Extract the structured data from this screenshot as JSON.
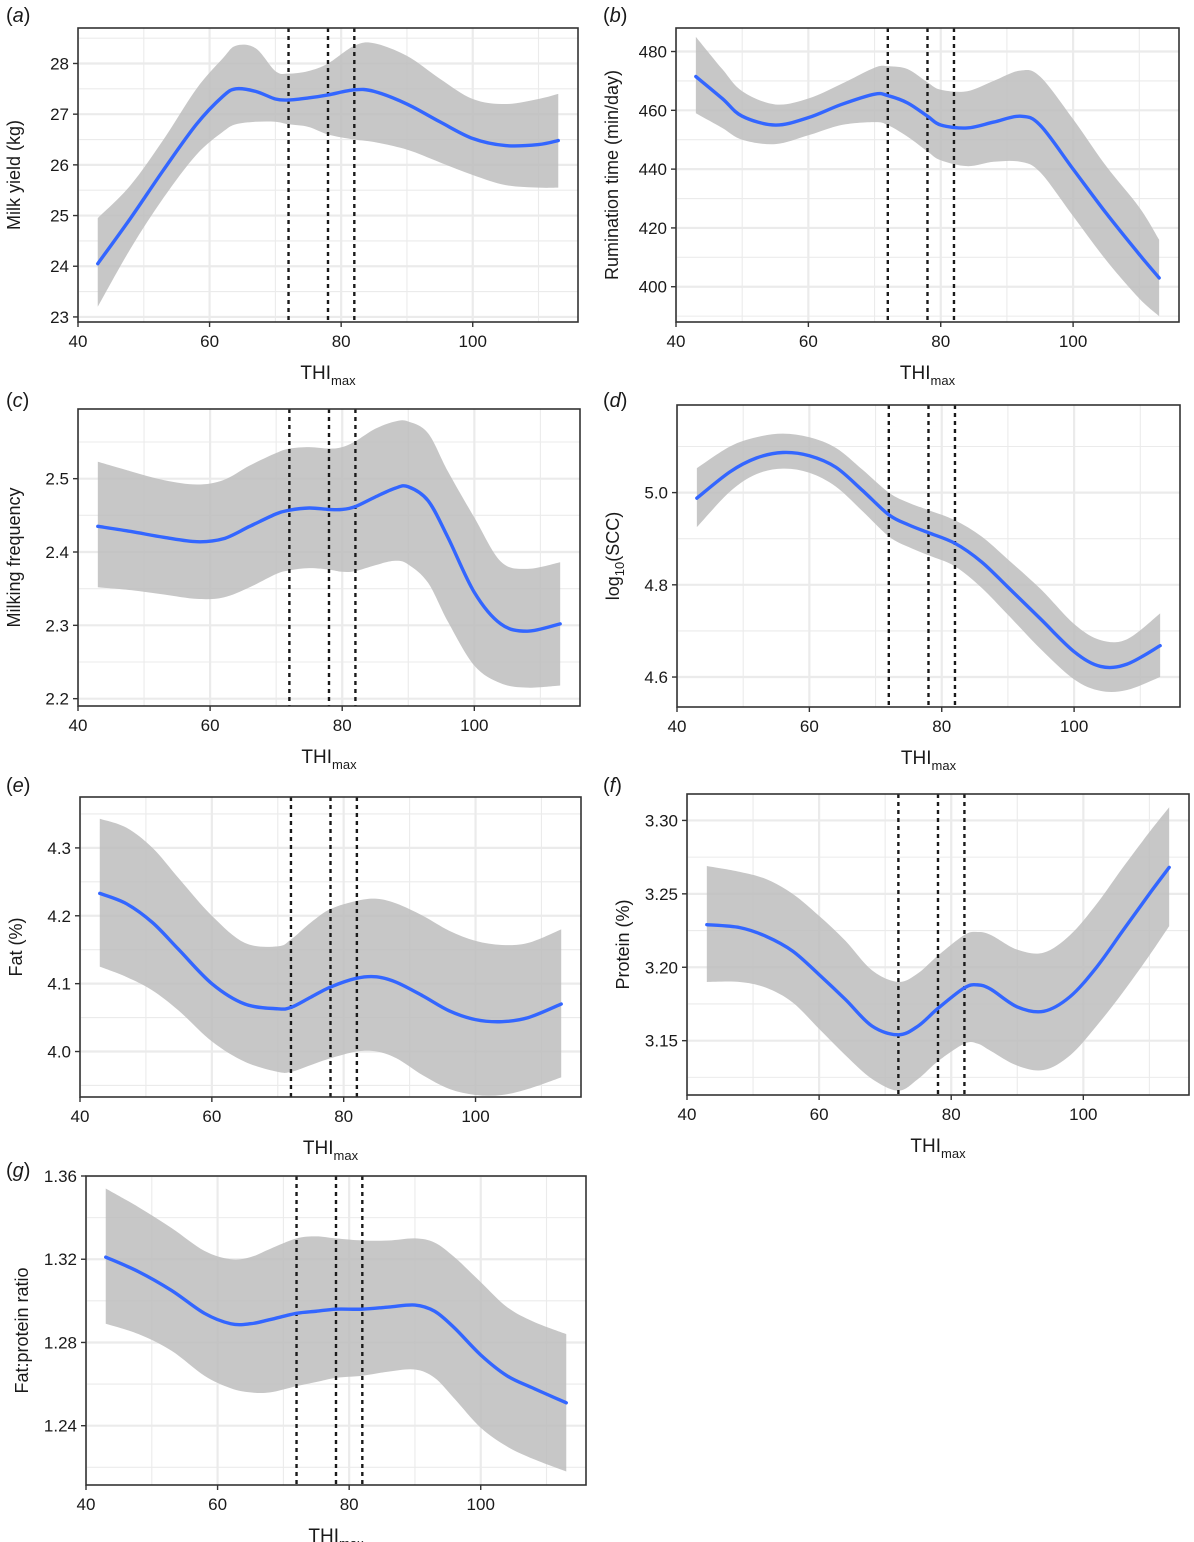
{
  "colors": {
    "line": "#3366FF",
    "ribbon": "#BDBDBD",
    "panel_bg": "#FFFFFF",
    "grid": "#EBEBEB",
    "frame": "#333333",
    "vline": "#1A1A1A"
  },
  "chart_data": [
    {
      "type": "line",
      "panel_label": "(a)",
      "panel_letter": "a",
      "xlabel": "THI",
      "xlabel_sub": "max",
      "ylabel": "Milk yield (kg)",
      "xlim": [
        40,
        116
      ],
      "ylim": [
        22.9,
        28.7
      ],
      "xticks": [
        40,
        60,
        80,
        100
      ],
      "yticks": [
        23,
        24,
        25,
        26,
        27,
        28
      ],
      "ytick_labels": [
        "23",
        "24",
        "25",
        "26",
        "27",
        "28"
      ],
      "vlines": [
        72,
        78,
        82
      ],
      "series": [
        {
          "name": "fit",
          "x": [
            43,
            48,
            53,
            58,
            62,
            64,
            67,
            70,
            72,
            75,
            78,
            82,
            85,
            90,
            95,
            100,
            105,
            110,
            113
          ],
          "values": [
            24.05,
            24.95,
            25.9,
            26.8,
            27.35,
            27.5,
            27.45,
            27.3,
            27.28,
            27.32,
            27.38,
            27.48,
            27.45,
            27.2,
            26.85,
            26.52,
            26.38,
            26.4,
            26.48
          ],
          "lower": [
            23.2,
            24.35,
            25.35,
            26.2,
            26.65,
            26.8,
            26.85,
            26.85,
            26.8,
            26.75,
            26.6,
            26.5,
            26.45,
            26.3,
            26.05,
            25.8,
            25.6,
            25.55,
            25.55
          ],
          "upper": [
            24.95,
            25.6,
            26.5,
            27.5,
            28.1,
            28.35,
            28.3,
            27.85,
            27.8,
            27.85,
            28.0,
            28.35,
            28.4,
            28.15,
            27.7,
            27.3,
            27.2,
            27.3,
            27.4
          ]
        }
      ]
    },
    {
      "type": "line",
      "panel_label": "(b)",
      "panel_letter": "b",
      "xlabel": "THI",
      "xlabel_sub": "max",
      "ylabel": "Rumination time (min/day)",
      "xlim": [
        40,
        116
      ],
      "ylim": [
        388,
        488
      ],
      "xticks": [
        40,
        60,
        80,
        100
      ],
      "yticks": [
        400,
        420,
        440,
        460,
        480
      ],
      "ytick_labels": [
        "400",
        "420",
        "440",
        "460",
        "480"
      ],
      "vlines": [
        72,
        78,
        82
      ],
      "series": [
        {
          "name": "fit",
          "x": [
            43,
            47,
            50,
            55,
            60,
            65,
            70,
            72,
            75,
            78,
            80,
            84,
            88,
            92,
            95,
            100,
            105,
            110,
            113
          ],
          "values": [
            471.5,
            464,
            458,
            455,
            457.5,
            462,
            465.5,
            465,
            462.5,
            458,
            455,
            454,
            456,
            458,
            455,
            440,
            425,
            411,
            403
          ],
          "lower": [
            459,
            454,
            450,
            448.5,
            451.5,
            455,
            456,
            455,
            451,
            446,
            443,
            441,
            442.5,
            442.5,
            439,
            424,
            409,
            396,
            390
          ],
          "upper": [
            485,
            474,
            466.5,
            462,
            464,
            469,
            474.5,
            475,
            474,
            469.5,
            467,
            466.5,
            470,
            473.5,
            471.5,
            457,
            441,
            427,
            416
          ]
        }
      ]
    },
    {
      "type": "line",
      "panel_label": "(c)",
      "panel_letter": "c",
      "xlabel": "THI",
      "xlabel_sub": "max",
      "ylabel": "Milking frequency",
      "xlim": [
        40,
        116
      ],
      "ylim": [
        2.19,
        2.595
      ],
      "xticks": [
        40,
        60,
        80,
        100
      ],
      "yticks": [
        2.2,
        2.3,
        2.4,
        2.5
      ],
      "ytick_labels": [
        "2.2",
        "2.3",
        "2.4",
        "2.5"
      ],
      "vlines": [
        72,
        78,
        82
      ],
      "series": [
        {
          "name": "fit",
          "x": [
            43,
            48,
            53,
            58,
            62,
            66,
            70,
            72,
            75,
            78,
            80,
            82,
            85,
            88,
            90,
            93,
            96,
            100,
            104,
            108,
            113
          ],
          "values": [
            2.435,
            2.428,
            2.42,
            2.414,
            2.418,
            2.435,
            2.452,
            2.457,
            2.46,
            2.458,
            2.458,
            2.462,
            2.475,
            2.487,
            2.489,
            2.47,
            2.42,
            2.345,
            2.302,
            2.292,
            2.302
          ],
          "lower": [
            2.352,
            2.348,
            2.342,
            2.336,
            2.338,
            2.352,
            2.37,
            2.375,
            2.378,
            2.376,
            2.373,
            2.374,
            2.382,
            2.388,
            2.383,
            2.358,
            2.305,
            2.245,
            2.221,
            2.215,
            2.218
          ],
          "upper": [
            2.523,
            2.51,
            2.498,
            2.492,
            2.498,
            2.518,
            2.535,
            2.541,
            2.543,
            2.541,
            2.543,
            2.551,
            2.568,
            2.578,
            2.578,
            2.562,
            2.51,
            2.447,
            2.387,
            2.377,
            2.386
          ]
        }
      ]
    },
    {
      "type": "line",
      "panel_label": "(d)",
      "panel_letter": "d",
      "xlabel": "THI",
      "xlabel_sub": "max",
      "ylabel": "log",
      "ylabel_sub": "10",
      "ylabel_suffix": "(SCC)",
      "xlim": [
        40,
        116
      ],
      "ylim": [
        4.535,
        5.19
      ],
      "xticks": [
        40,
        60,
        80,
        100
      ],
      "yticks": [
        4.6,
        4.8,
        5.0
      ],
      "ytick_labels": [
        "4.6",
        "4.8",
        "5.0"
      ],
      "vlines": [
        72,
        78,
        82
      ],
      "series": [
        {
          "name": "fit",
          "x": [
            43,
            48,
            52,
            56,
            60,
            64,
            68,
            72,
            75,
            78,
            82,
            86,
            90,
            95,
            100,
            104,
            108,
            113
          ],
          "values": [
            4.988,
            5.045,
            5.075,
            5.087,
            5.08,
            5.055,
            5.005,
            4.952,
            4.93,
            4.913,
            4.89,
            4.85,
            4.795,
            4.725,
            4.655,
            4.623,
            4.628,
            4.668
          ],
          "lower": [
            4.925,
            5.002,
            5.04,
            5.052,
            5.043,
            5.013,
            4.96,
            4.905,
            4.882,
            4.864,
            4.84,
            4.794,
            4.735,
            4.66,
            4.595,
            4.57,
            4.572,
            4.6
          ],
          "upper": [
            5.053,
            5.1,
            5.12,
            5.128,
            5.12,
            5.097,
            5.05,
            5.0,
            4.978,
            4.962,
            4.94,
            4.905,
            4.855,
            4.79,
            4.715,
            4.68,
            4.682,
            4.738
          ]
        }
      ]
    },
    {
      "type": "line",
      "panel_label": "(e)",
      "panel_letter": "e",
      "xlabel": "THI",
      "xlabel_sub": "max",
      "ylabel": "Fat (%)",
      "xlim": [
        40,
        116
      ],
      "ylim": [
        3.933,
        4.375
      ],
      "xticks": [
        40,
        60,
        80,
        100
      ],
      "yticks": [
        4.0,
        4.1,
        4.2,
        4.3
      ],
      "ytick_labels": [
        "4.0",
        "4.1",
        "4.2",
        "4.3"
      ],
      "vlines": [
        72,
        78,
        82
      ],
      "series": [
        {
          "name": "fit",
          "x": [
            43,
            47,
            51,
            55,
            60,
            65,
            70,
            72,
            75,
            78,
            82,
            85,
            88,
            92,
            96,
            100,
            104,
            108,
            113
          ],
          "values": [
            4.233,
            4.218,
            4.19,
            4.15,
            4.1,
            4.07,
            4.063,
            4.065,
            4.08,
            4.095,
            4.108,
            4.11,
            4.102,
            4.082,
            4.06,
            4.047,
            4.044,
            4.05,
            4.07
          ],
          "lower": [
            4.125,
            4.11,
            4.09,
            4.06,
            4.015,
            3.985,
            3.97,
            3.97,
            3.98,
            3.99,
            4.0,
            4.0,
            3.99,
            3.965,
            3.945,
            3.936,
            3.936,
            3.945,
            3.962
          ],
          "upper": [
            4.343,
            4.33,
            4.3,
            4.255,
            4.2,
            4.16,
            4.155,
            4.165,
            4.19,
            4.21,
            4.222,
            4.225,
            4.218,
            4.2,
            4.178,
            4.163,
            4.157,
            4.16,
            4.18
          ]
        }
      ]
    },
    {
      "type": "line",
      "panel_label": "(f)",
      "panel_letter": "f",
      "xlabel": "THI",
      "xlabel_sub": "max",
      "ylabel": "Protein (%)",
      "xlim": [
        40,
        116
      ],
      "ylim": [
        3.113,
        3.318
      ],
      "xticks": [
        40,
        60,
        80,
        100
      ],
      "yticks": [
        3.15,
        3.2,
        3.25,
        3.3
      ],
      "ytick_labels": [
        "3.15",
        "3.20",
        "3.25",
        "3.30"
      ],
      "vlines": [
        72,
        78,
        82
      ],
      "series": [
        {
          "name": "fit",
          "x": [
            43,
            48,
            52,
            56,
            60,
            64,
            68,
            72,
            75,
            78,
            82,
            84,
            86,
            90,
            94,
            98,
            102,
            106,
            110,
            113
          ],
          "values": [
            3.229,
            3.227,
            3.221,
            3.211,
            3.195,
            3.178,
            3.16,
            3.154,
            3.16,
            3.172,
            3.186,
            3.188,
            3.185,
            3.173,
            3.17,
            3.18,
            3.2,
            3.225,
            3.25,
            3.268
          ],
          "lower": [
            3.19,
            3.19,
            3.186,
            3.176,
            3.158,
            3.14,
            3.124,
            3.116,
            3.124,
            3.136,
            3.148,
            3.148,
            3.143,
            3.133,
            3.13,
            3.14,
            3.16,
            3.183,
            3.208,
            3.228
          ],
          "upper": [
            3.269,
            3.265,
            3.26,
            3.25,
            3.235,
            3.218,
            3.198,
            3.19,
            3.196,
            3.208,
            3.222,
            3.224,
            3.222,
            3.212,
            3.21,
            3.222,
            3.243,
            3.268,
            3.292,
            3.309
          ]
        }
      ]
    },
    {
      "type": "line",
      "panel_label": "(g)",
      "panel_letter": "g",
      "xlabel": "THI",
      "xlabel_sub": "max",
      "ylabel": "Fat:protein ratio",
      "xlim": [
        40,
        116
      ],
      "ylim": [
        1.2115,
        1.36
      ],
      "xticks": [
        40,
        60,
        80,
        100
      ],
      "yticks": [
        1.24,
        1.28,
        1.32,
        1.36
      ],
      "ytick_labels": [
        "1.24",
        "1.28",
        "1.32",
        "1.36"
      ],
      "vlines": [
        72,
        78,
        82
      ],
      "series": [
        {
          "name": "fit",
          "x": [
            43,
            48,
            53,
            58,
            62,
            65,
            68,
            72,
            75,
            78,
            82,
            86,
            90,
            93,
            96,
            100,
            104,
            108,
            113
          ],
          "values": [
            1.321,
            1.314,
            1.305,
            1.294,
            1.289,
            1.289,
            1.291,
            1.294,
            1.295,
            1.296,
            1.296,
            1.297,
            1.298,
            1.295,
            1.287,
            1.274,
            1.264,
            1.258,
            1.251
          ],
          "lower": [
            1.289,
            1.284,
            1.276,
            1.264,
            1.258,
            1.256,
            1.256,
            1.259,
            1.261,
            1.263,
            1.264,
            1.266,
            1.267,
            1.263,
            1.253,
            1.239,
            1.23,
            1.224,
            1.218
          ],
          "upper": [
            1.354,
            1.345,
            1.335,
            1.324,
            1.32,
            1.321,
            1.325,
            1.33,
            1.331,
            1.33,
            1.329,
            1.329,
            1.33,
            1.328,
            1.321,
            1.309,
            1.297,
            1.29,
            1.284
          ]
        }
      ]
    }
  ]
}
